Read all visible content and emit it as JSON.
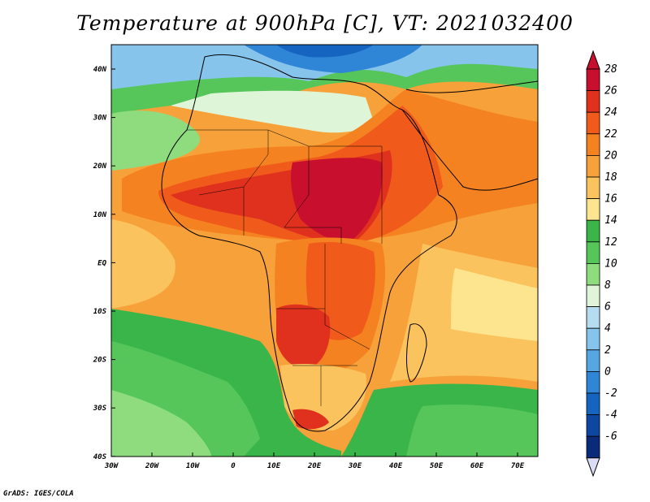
{
  "title": "Temperature at 900hPa [C], VT: 2021032400",
  "credit": "GrADS: IGES/COLA",
  "map": {
    "lat_labels": [
      "40N",
      "30N",
      "20N",
      "10N",
      "EQ",
      "10S",
      "20S",
      "30S",
      "40S"
    ],
    "lon_labels": [
      "30W",
      "20W",
      "10W",
      "0",
      "10E",
      "20E",
      "30E",
      "40E",
      "50E",
      "60E",
      "70E"
    ],
    "lon_range": [
      -30,
      75
    ],
    "lat_range": [
      -40,
      44
    ]
  },
  "colorbar": {
    "labels": [
      "28",
      "26",
      "24",
      "22",
      "20",
      "18",
      "16",
      "14",
      "12",
      "10",
      "8",
      "6",
      "4",
      "2",
      "0",
      "-2",
      "-4",
      "-6"
    ],
    "colors": [
      "#c8102e",
      "#e0301e",
      "#f05a1a",
      "#f58220",
      "#f7a13a",
      "#fbc35e",
      "#fde48e",
      "#39b54a",
      "#56c65a",
      "#8fdc7f",
      "#dff5d8",
      "#b6dcf2",
      "#87c4ec",
      "#56a6e2",
      "#2f86d6",
      "#1565c0",
      "#0d47a1",
      "#0a2a7a"
    ]
  }
}
